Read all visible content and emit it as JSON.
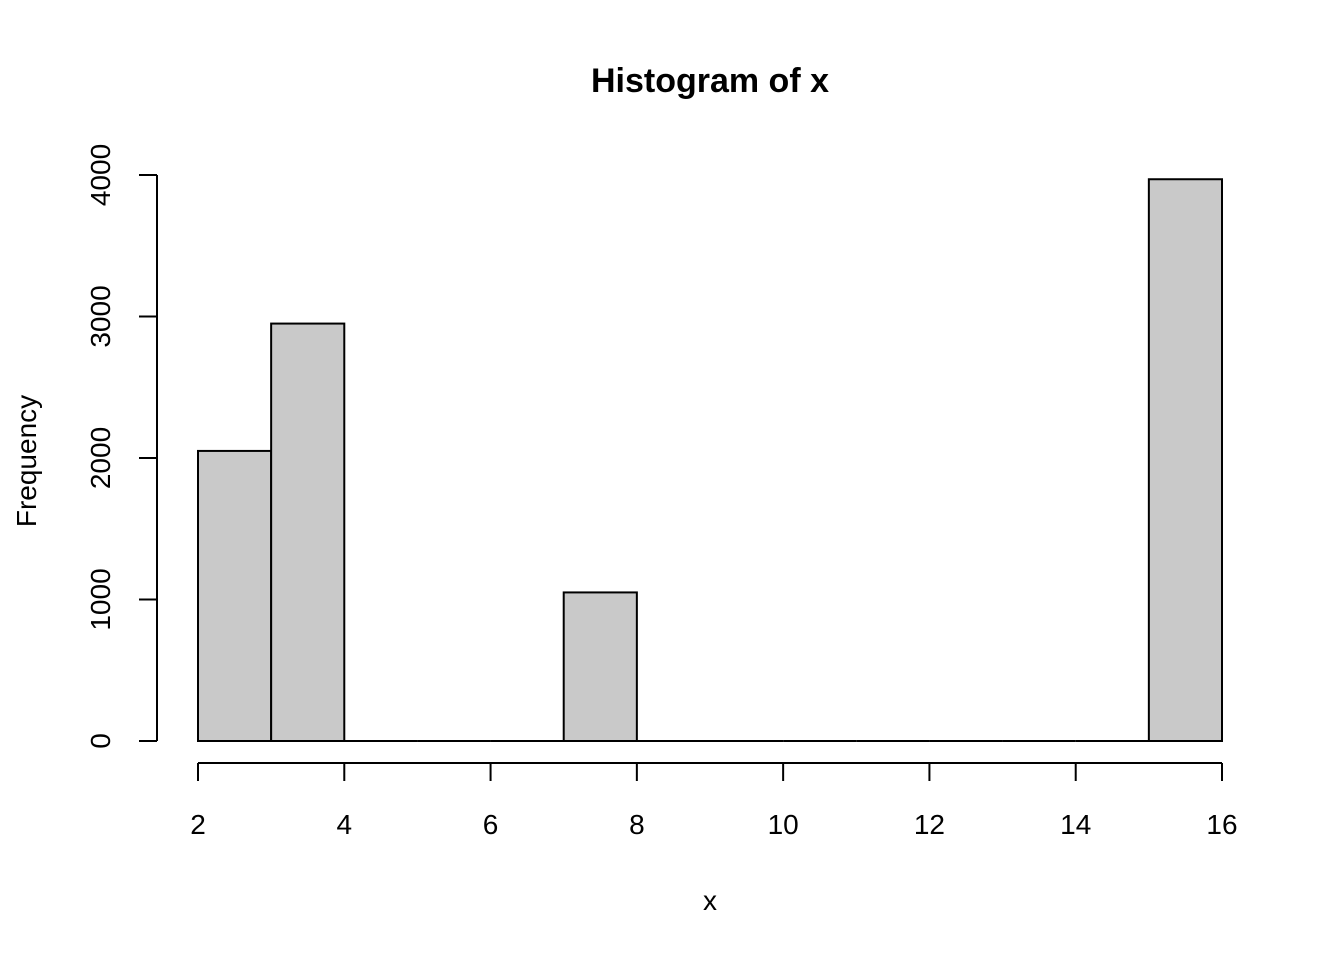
{
  "chart_data": {
    "type": "bar",
    "title": "Histogram of x",
    "xlabel": "x",
    "ylabel": "Frequency",
    "bins": [
      {
        "start": 2,
        "end": 3,
        "count": 2050
      },
      {
        "start": 3,
        "end": 4,
        "count": 2950
      },
      {
        "start": 4,
        "end": 5,
        "count": 0
      },
      {
        "start": 5,
        "end": 6,
        "count": 0
      },
      {
        "start": 6,
        "end": 7,
        "count": 0
      },
      {
        "start": 7,
        "end": 8,
        "count": 1050
      },
      {
        "start": 8,
        "end": 9,
        "count": 0
      },
      {
        "start": 9,
        "end": 10,
        "count": 0
      },
      {
        "start": 10,
        "end": 11,
        "count": 0
      },
      {
        "start": 11,
        "end": 12,
        "count": 0
      },
      {
        "start": 12,
        "end": 13,
        "count": 0
      },
      {
        "start": 13,
        "end": 14,
        "count": 0
      },
      {
        "start": 14,
        "end": 15,
        "count": 0
      },
      {
        "start": 15,
        "end": 16,
        "count": 3970
      }
    ],
    "xlim": [
      2,
      16
    ],
    "ylim": [
      0,
      4000
    ],
    "xticks": [
      2,
      4,
      6,
      8,
      10,
      12,
      14,
      16
    ],
    "yticks": [
      0,
      1000,
      2000,
      3000,
      4000
    ],
    "grid": false,
    "bar_color": "#c9c9c9"
  }
}
